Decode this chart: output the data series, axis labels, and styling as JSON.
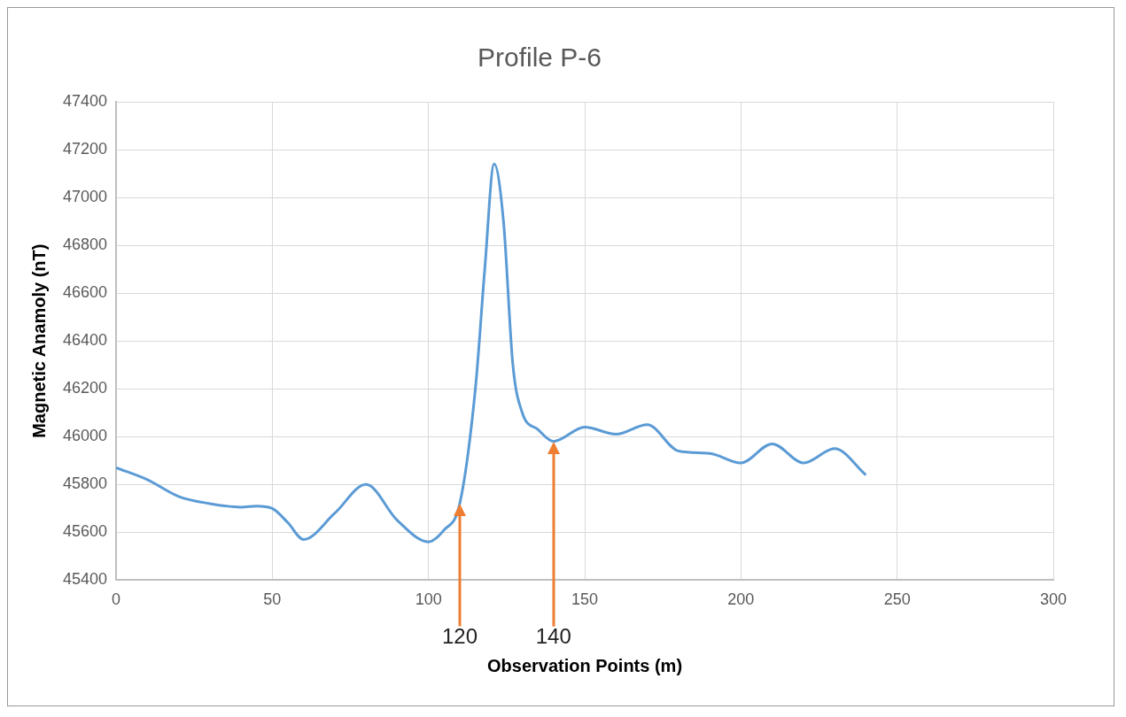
{
  "chart_data": {
    "type": "line",
    "title": "Profile P-6",
    "xlabel": "Observation Points (m)",
    "ylabel": "Magnetic Anamoly (nT)",
    "x": [
      0,
      10,
      20,
      30,
      40,
      45,
      50,
      55,
      60,
      70,
      80,
      90,
      100,
      105,
      110,
      115,
      118,
      121,
      124,
      127,
      130,
      135,
      140,
      150,
      160,
      170,
      180,
      190,
      200,
      210,
      220,
      230,
      240
    ],
    "series": [
      {
        "color": "#5b9bd5",
        "values": [
          45870,
          45820,
          45750,
          45720,
          45705,
          45710,
          45700,
          45640,
          45570,
          45680,
          45800,
          45650,
          45560,
          45610,
          45720,
          46200,
          46700,
          47140,
          46900,
          46300,
          46100,
          46030,
          45980,
          46040,
          46010,
          46050,
          45940,
          45930,
          45890,
          45970,
          45890,
          45950,
          45840
        ]
      }
    ],
    "xlim": [
      0,
      300
    ],
    "xticks": [
      0,
      50,
      100,
      150,
      200,
      250,
      300
    ],
    "ylim": [
      45400,
      47400
    ],
    "yticks": [
      45400,
      45600,
      45800,
      46000,
      46200,
      46400,
      46600,
      46800,
      47000,
      47200,
      47400
    ],
    "grid": true,
    "legend": false,
    "marker": "none",
    "line_style": "solid",
    "annotations": [
      {
        "text": "120",
        "x": 110
      },
      {
        "text": "140",
        "x": 140
      }
    ]
  }
}
